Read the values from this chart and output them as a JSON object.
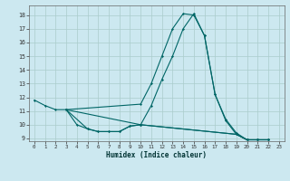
{
  "xlabel": "Humidex (Indice chaleur)",
  "bg_color": "#cce8f0",
  "grid_color": "#aacccc",
  "line_color": "#006666",
  "xlim": [
    -0.5,
    23.5
  ],
  "ylim": [
    8.8,
    18.7
  ],
  "xticks": [
    0,
    1,
    2,
    3,
    4,
    5,
    6,
    7,
    8,
    9,
    10,
    11,
    12,
    13,
    14,
    15,
    16,
    17,
    18,
    19,
    20,
    21,
    22,
    23
  ],
  "yticks": [
    9,
    10,
    11,
    12,
    13,
    14,
    15,
    16,
    17,
    18
  ],
  "lines": [
    {
      "x": [
        0,
        1,
        2,
        3,
        10,
        11,
        12,
        13,
        14,
        15,
        16,
        17,
        18,
        19,
        20,
        21,
        22
      ],
      "y": [
        11.8,
        11.4,
        11.1,
        11.1,
        11.5,
        13.0,
        15.0,
        17.0,
        18.1,
        18.0,
        16.5,
        12.2,
        10.4,
        9.4,
        8.9,
        8.9,
        8.9
      ]
    },
    {
      "x": [
        3,
        10,
        11,
        12,
        13,
        14,
        15,
        16,
        17,
        18,
        19,
        20,
        21,
        22
      ],
      "y": [
        11.1,
        10.0,
        11.4,
        13.3,
        15.0,
        17.0,
        18.1,
        16.5,
        12.2,
        10.3,
        9.3,
        8.9,
        8.9,
        8.9
      ]
    },
    {
      "x": [
        3,
        4,
        5,
        6,
        7,
        8,
        9,
        10,
        19,
        20,
        21,
        22
      ],
      "y": [
        11.1,
        10.0,
        9.7,
        9.5,
        9.5,
        9.5,
        9.9,
        10.0,
        9.3,
        8.9,
        8.9,
        8.9
      ]
    },
    {
      "x": [
        3,
        5,
        6,
        7,
        8,
        9,
        10,
        19,
        20,
        21,
        22
      ],
      "y": [
        11.1,
        9.7,
        9.5,
        9.5,
        9.5,
        9.9,
        10.0,
        9.3,
        8.9,
        8.9,
        8.9
      ]
    }
  ]
}
